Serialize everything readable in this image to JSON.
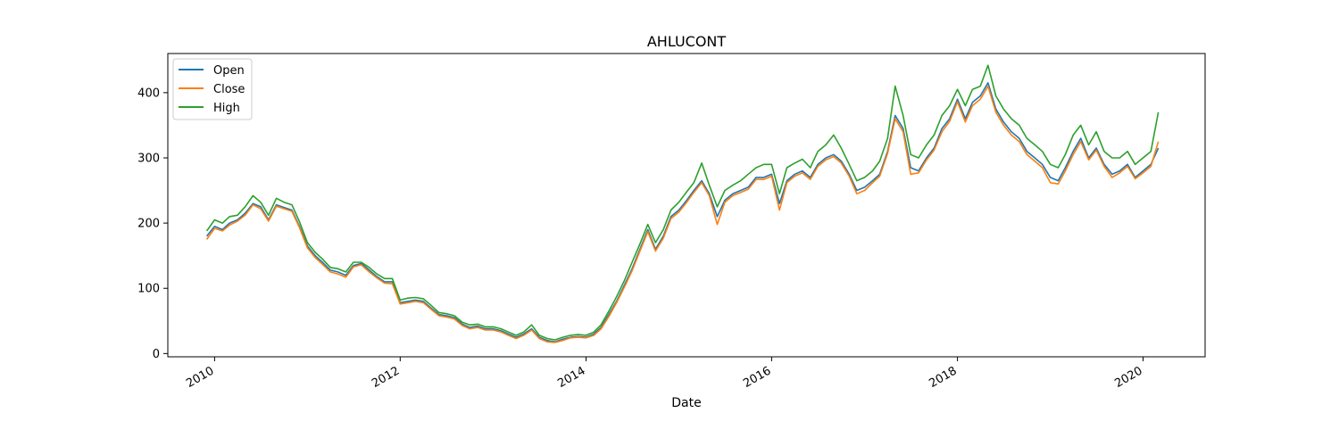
{
  "chart_data": {
    "type": "line",
    "title": "AHLUCONT",
    "xlabel": "Date",
    "ylabel": "",
    "xlim": [
      "2009-07-01",
      "2020-09-01"
    ],
    "ylim": [
      -5,
      460
    ],
    "x_ticks": [
      "2010-01-01",
      "2012-01-01",
      "2014-01-01",
      "2016-01-01",
      "2018-01-01",
      "2020-01-01"
    ],
    "x_tick_labels": [
      "2010",
      "2012",
      "2014",
      "2016",
      "2018",
      "2020"
    ],
    "y_ticks": [
      0,
      100,
      200,
      300,
      400
    ],
    "legend_position": "top-left",
    "grid": false,
    "series_colors": {
      "Open": "#1f77b4",
      "Close": "#ff7f0e",
      "High": "#2ca02c"
    },
    "dates": [
      "2009-12-01",
      "2010-01-01",
      "2010-02-01",
      "2010-03-01",
      "2010-04-01",
      "2010-05-01",
      "2010-06-01",
      "2010-07-01",
      "2010-08-01",
      "2010-09-01",
      "2010-10-01",
      "2010-11-01",
      "2010-12-01",
      "2011-01-01",
      "2011-02-01",
      "2011-03-01",
      "2011-04-01",
      "2011-05-01",
      "2011-06-01",
      "2011-07-01",
      "2011-08-01",
      "2011-09-01",
      "2011-10-01",
      "2011-11-01",
      "2011-12-01",
      "2012-01-01",
      "2012-02-01",
      "2012-03-01",
      "2012-04-01",
      "2012-05-01",
      "2012-06-01",
      "2012-07-01",
      "2012-08-01",
      "2012-09-01",
      "2012-10-01",
      "2012-11-01",
      "2012-12-01",
      "2013-01-01",
      "2013-02-01",
      "2013-03-01",
      "2013-04-01",
      "2013-05-01",
      "2013-06-01",
      "2013-07-01",
      "2013-08-01",
      "2013-09-01",
      "2013-10-01",
      "2013-11-01",
      "2013-12-01",
      "2014-01-01",
      "2014-02-01",
      "2014-03-01",
      "2014-04-01",
      "2014-05-01",
      "2014-06-01",
      "2014-07-01",
      "2014-08-01",
      "2014-09-01",
      "2014-10-01",
      "2014-11-01",
      "2014-12-01",
      "2015-01-01",
      "2015-02-01",
      "2015-03-01",
      "2015-04-01",
      "2015-05-01",
      "2015-06-01",
      "2015-07-01",
      "2015-08-01",
      "2015-09-01",
      "2015-10-01",
      "2015-11-01",
      "2015-12-01",
      "2016-01-01",
      "2016-02-01",
      "2016-03-01",
      "2016-04-01",
      "2016-05-01",
      "2016-06-01",
      "2016-07-01",
      "2016-08-01",
      "2016-09-01",
      "2016-10-01",
      "2016-11-01",
      "2016-12-01",
      "2017-01-01",
      "2017-02-01",
      "2017-03-01",
      "2017-04-01",
      "2017-05-01",
      "2017-06-01",
      "2017-07-01",
      "2017-08-01",
      "2017-09-01",
      "2017-10-01",
      "2017-11-01",
      "2017-12-01",
      "2018-01-01",
      "2018-02-01",
      "2018-03-01",
      "2018-04-01",
      "2018-05-01",
      "2018-06-01",
      "2018-07-01",
      "2018-08-01",
      "2018-09-01",
      "2018-10-01",
      "2018-11-01",
      "2018-12-01",
      "2019-01-01",
      "2019-02-01",
      "2019-03-01",
      "2019-04-01",
      "2019-05-01",
      "2019-06-01",
      "2019-07-01",
      "2019-08-01",
      "2019-09-01",
      "2019-10-01",
      "2019-11-01",
      "2019-12-01",
      "2020-01-01",
      "2020-02-01",
      "2020-03-01"
    ],
    "series": [
      {
        "name": "Open",
        "values": [
          180,
          195,
          190,
          200,
          205,
          215,
          230,
          225,
          205,
          228,
          224,
          220,
          195,
          165,
          150,
          140,
          128,
          125,
          120,
          135,
          138,
          128,
          118,
          110,
          110,
          78,
          80,
          82,
          80,
          70,
          60,
          58,
          55,
          45,
          40,
          42,
          38,
          38,
          35,
          30,
          25,
          30,
          38,
          25,
          20,
          18,
          22,
          25,
          26,
          25,
          30,
          40,
          60,
          80,
          105,
          130,
          160,
          190,
          160,
          180,
          210,
          220,
          235,
          250,
          265,
          245,
          210,
          235,
          245,
          250,
          255,
          270,
          270,
          275,
          230,
          265,
          275,
          280,
          270,
          290,
          300,
          305,
          295,
          275,
          250,
          255,
          265,
          275,
          310,
          365,
          345,
          285,
          280,
          300,
          315,
          345,
          360,
          390,
          360,
          385,
          395,
          415,
          375,
          355,
          340,
          330,
          310,
          300,
          290,
          270,
          265,
          285,
          310,
          330,
          300,
          315,
          290,
          275,
          280,
          290,
          270,
          280,
          290,
          315
        ]
      },
      {
        "name": "Close",
        "values": [
          175,
          192,
          188,
          197,
          203,
          212,
          228,
          222,
          203,
          226,
          222,
          218,
          193,
          162,
          147,
          137,
          125,
          122,
          117,
          133,
          136,
          125,
          116,
          108,
          107,
          76,
          78,
          80,
          78,
          68,
          58,
          56,
          53,
          43,
          38,
          40,
          36,
          36,
          33,
          28,
          23,
          28,
          36,
          23,
          18,
          17,
          20,
          24,
          25,
          24,
          28,
          38,
          57,
          78,
          102,
          127,
          157,
          187,
          157,
          177,
          207,
          217,
          232,
          247,
          262,
          242,
          198,
          232,
          242,
          247,
          252,
          267,
          267,
          272,
          220,
          262,
          272,
          277,
          267,
          287,
          297,
          302,
          292,
          272,
          245,
          250,
          262,
          272,
          307,
          360,
          340,
          275,
          277,
          297,
          312,
          340,
          356,
          386,
          355,
          380,
          390,
          410,
          370,
          350,
          335,
          325,
          305,
          295,
          285,
          262,
          260,
          280,
          305,
          325,
          297,
          312,
          287,
          270,
          277,
          287,
          268,
          277,
          287,
          325
        ]
      },
      {
        "name": "High",
        "values": [
          188,
          205,
          200,
          210,
          212,
          225,
          242,
          232,
          212,
          238,
          232,
          228,
          202,
          170,
          155,
          145,
          132,
          130,
          125,
          140,
          140,
          132,
          122,
          115,
          115,
          82,
          85,
          86,
          84,
          74,
          63,
          61,
          58,
          48,
          44,
          45,
          41,
          41,
          38,
          33,
          28,
          33,
          44,
          28,
          23,
          21,
          25,
          28,
          29,
          28,
          33,
          44,
          65,
          87,
          112,
          140,
          168,
          198,
          170,
          190,
          220,
          232,
          248,
          262,
          292,
          258,
          225,
          250,
          258,
          265,
          275,
          285,
          290,
          290,
          245,
          285,
          292,
          298,
          285,
          310,
          320,
          335,
          315,
          290,
          265,
          270,
          280,
          295,
          330,
          410,
          365,
          305,
          300,
          320,
          335,
          365,
          380,
          405,
          380,
          405,
          410,
          442,
          395,
          375,
          360,
          350,
          330,
          320,
          310,
          290,
          285,
          305,
          335,
          350,
          320,
          340,
          310,
          300,
          300,
          310,
          290,
          300,
          310,
          370
        ]
      }
    ]
  }
}
